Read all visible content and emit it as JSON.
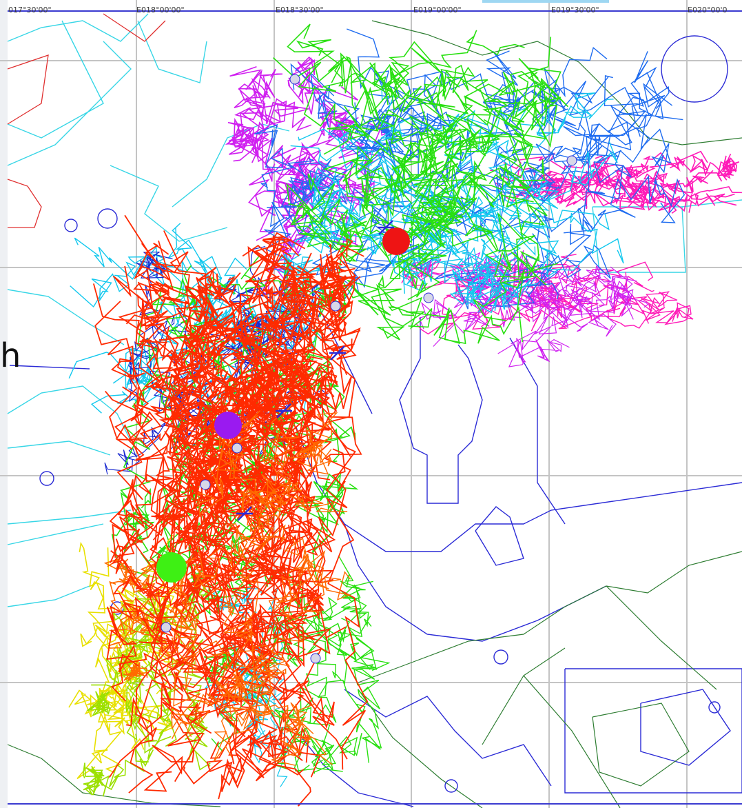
{
  "map": {
    "longitude_labels": [
      "017°30'00\"",
      "E018°00'00\"",
      "E018°30'00\"",
      "E019°00'00\"",
      "E019°30'00\"",
      "E020°00'0"
    ],
    "cut_off_text": "h",
    "colors": {
      "grid": "#c4c4c4",
      "frame": "#3b3bd0",
      "airspace_cyan": "#38d6e6",
      "airspace_blue": "#2b2bd6",
      "coastline_green": "#2e7d32",
      "boundary_red": "#e03030",
      "track_red": "#ff2a00",
      "track_orange": "#ff6a00",
      "track_yellow": "#e8e000",
      "track_lime": "#9be000",
      "track_green": "#28e010",
      "track_cyan": "#12c8ee",
      "track_blue": "#1e6cf0",
      "track_navy": "#1a2ad0",
      "track_magenta": "#d020f0",
      "track_pink": "#ff1ab8",
      "marker_red": "#ee1414",
      "marker_purple": "#9a1af0",
      "marker_green": "#3ef014"
    },
    "markers": [
      {
        "name": "red-marker-dot",
        "color": "marker_red"
      },
      {
        "name": "purple-marker-dot",
        "color": "marker_purple"
      },
      {
        "name": "green-marker-dot",
        "color": "marker_green"
      }
    ]
  }
}
